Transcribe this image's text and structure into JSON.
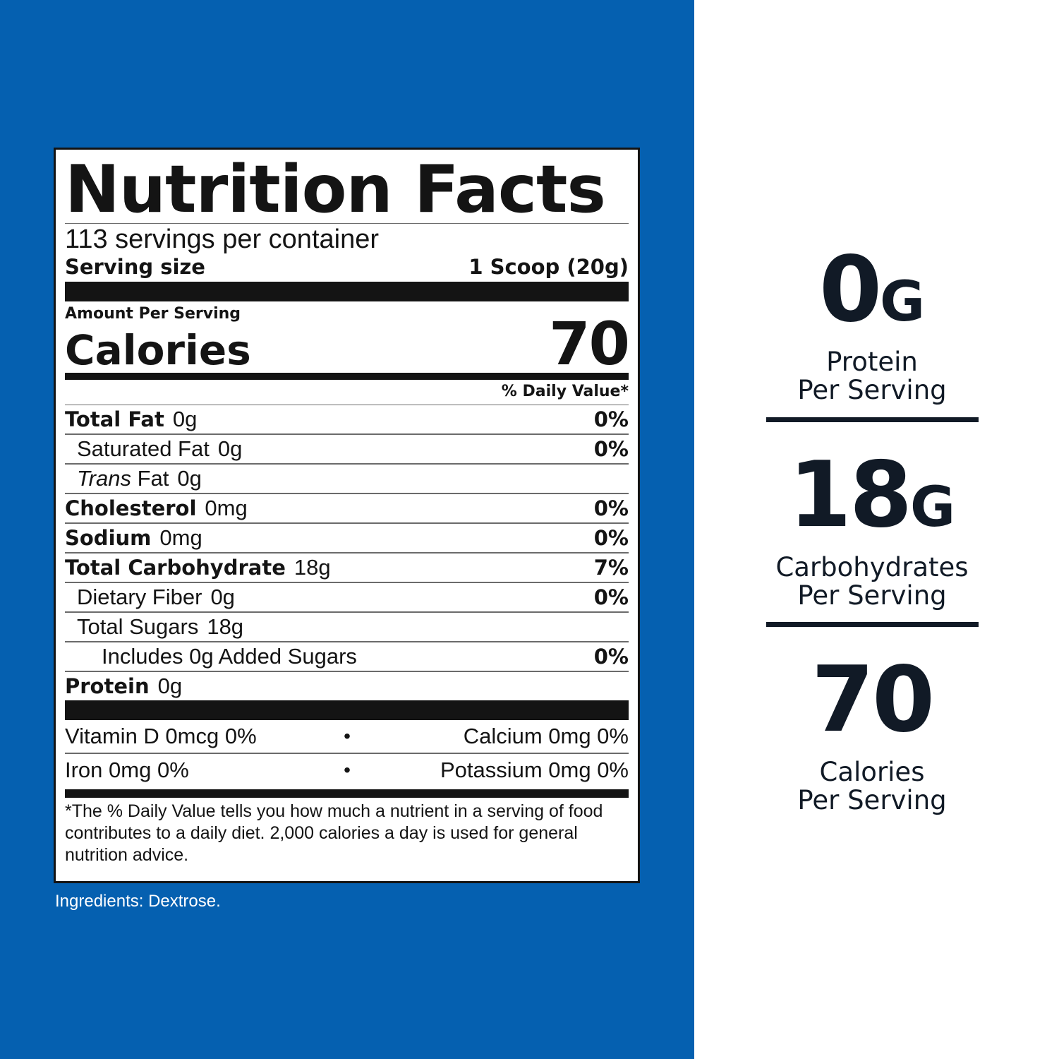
{
  "nutrition": {
    "title": "Nutrition Facts",
    "servings_per_container": "113 servings per container",
    "serving_size_label": "Serving size",
    "serving_size_value": "1 Scoop (20g)",
    "amount_per_serving": "Amount Per Serving",
    "calories_label": "Calories",
    "calories_value": "70",
    "daily_value_header": "% Daily Value*",
    "rows": [
      {
        "label": "Total Fat",
        "amount": "0g",
        "dv": "0%"
      },
      {
        "label": "Saturated Fat",
        "amount": "0g",
        "dv": "0%"
      },
      {
        "label_italic": "Trans",
        "label": "Fat",
        "amount": "0g",
        "dv": ""
      },
      {
        "label": "Cholesterol",
        "amount": "0mg",
        "dv": "0%"
      },
      {
        "label": "Sodium",
        "amount": "0mg",
        "dv": "0%"
      },
      {
        "label": "Total Carbohydrate",
        "amount": "18g",
        "dv": "7%"
      },
      {
        "label": "Dietary Fiber",
        "amount": "0g",
        "dv": "0%"
      },
      {
        "label": "Total Sugars",
        "amount": "18g",
        "dv": ""
      },
      {
        "label": "Includes 0g Added Sugars",
        "amount": "",
        "dv": "0%"
      },
      {
        "label": "Protein",
        "amount": "0g",
        "dv": ""
      }
    ],
    "vitamins": [
      {
        "left": "Vitamin D  0mcg  0%",
        "right": "Calcium  0mg  0%"
      },
      {
        "left": "Iron  0mg  0%",
        "right": "Potassium  0mg  0%"
      }
    ],
    "bullet": "•",
    "footnote": "*The % Daily Value tells you how much a nutrient in a serving of food contributes to a daily diet. 2,000 calories a day is used for general nutrition advice."
  },
  "ingredients": "Ingredients: Dextrose.",
  "stats": [
    {
      "value": "0",
      "unit": "G",
      "line1": "Protein",
      "line2": "Per Serving"
    },
    {
      "value": "18",
      "unit": "G",
      "line1": "Carbohydrates",
      "line2": "Per Serving"
    },
    {
      "value": "70",
      "unit": "",
      "line1": "Calories",
      "line2": "Per Serving"
    }
  ],
  "colors": {
    "panel_blue": "#0560b0",
    "ink": "#141414",
    "stat_navy": "#111a26"
  }
}
